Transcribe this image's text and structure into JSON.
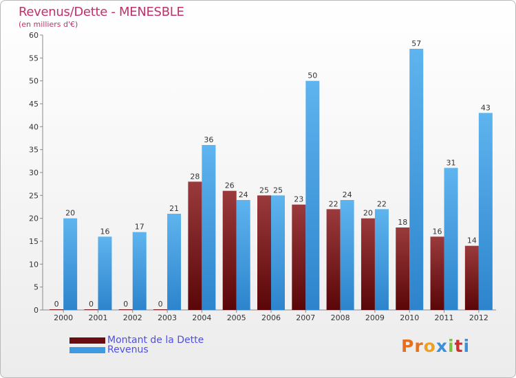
{
  "header": {
    "title": "Revenus/Dette - MENESBLE",
    "subtitle": "(en milliers d'€)"
  },
  "colors": {
    "dette": "#7a1416",
    "revenus": "#3b9ae0",
    "title": "#c0306a",
    "legend_text": "#4f4fe0"
  },
  "legend": {
    "items": [
      {
        "label": "Montant de la Dette",
        "color": "#6b0d10"
      },
      {
        "label": "Revenus",
        "color": "#3b9ae0"
      }
    ]
  },
  "logo": {
    "text": "Proxiti",
    "letter_colors": [
      "#e8701c",
      "#e8701c",
      "#f0a020",
      "#3c8fd8",
      "#7cc23a",
      "#d03030",
      "#3c8fd8"
    ]
  },
  "chart_data": {
    "type": "bar",
    "title": "Revenus/Dette - MENESBLE",
    "subtitle": "(en milliers d'€)",
    "categories": [
      "2000",
      "2001",
      "2002",
      "2003",
      "2004",
      "2005",
      "2006",
      "2007",
      "2008",
      "2009",
      "2010",
      "2011",
      "2012"
    ],
    "series": [
      {
        "name": "Montant de la Dette",
        "values": [
          0,
          0,
          0,
          0,
          28,
          26,
          25,
          23,
          22,
          20,
          18,
          16,
          14
        ]
      },
      {
        "name": "Revenus",
        "values": [
          20,
          16,
          17,
          21,
          36,
          24,
          25,
          50,
          24,
          22,
          57,
          31,
          43
        ]
      }
    ],
    "ylim": [
      0,
      60
    ],
    "yticks": [
      0,
      5,
      10,
      15,
      20,
      25,
      30,
      35,
      40,
      45,
      50,
      55,
      60
    ],
    "grid": false,
    "legend_position": "bottom-left"
  }
}
